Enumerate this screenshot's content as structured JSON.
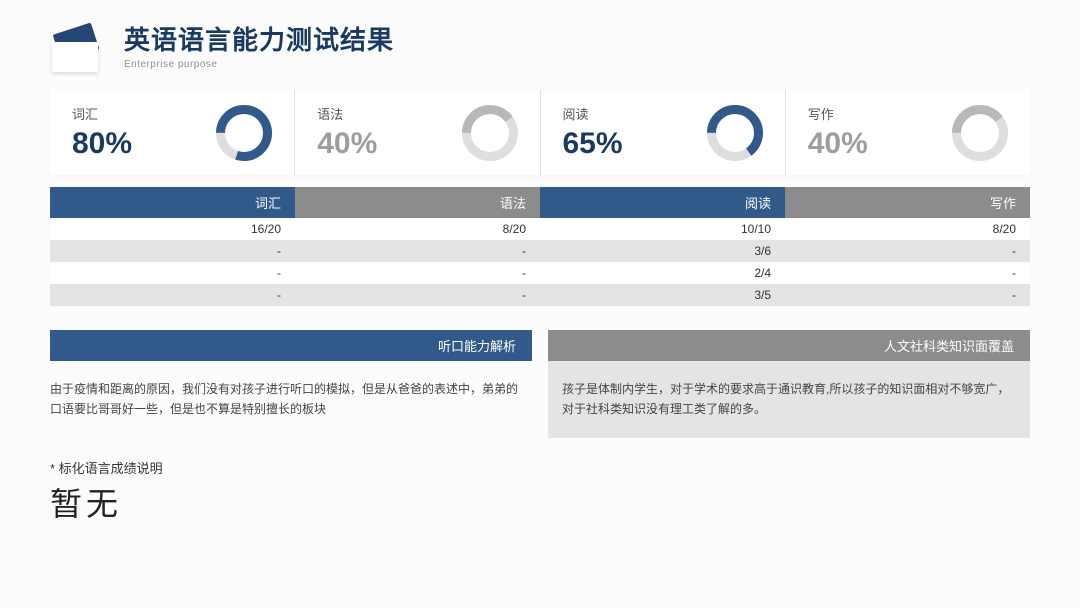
{
  "header": {
    "title": "英语语言能力测试结果",
    "subtitle": "Enterprise purpose"
  },
  "colors": {
    "primary": "#315a8b",
    "primary_dark": "#264776",
    "grey_header": "#8c8c8c",
    "grey_track": "#dedede",
    "grey_fill": "#b8b8b8",
    "row_alt": "#e4e4e4",
    "text_dark": "#1a3a63"
  },
  "donuts": [
    {
      "label": "词汇",
      "percent": 80,
      "display": "80%",
      "color": "#315a8b",
      "emphasis": true
    },
    {
      "label": "语法",
      "percent": 40,
      "display": "40%",
      "color": "#b8b8b8",
      "emphasis": false
    },
    {
      "label": "阅读",
      "percent": 65,
      "display": "65%",
      "color": "#315a8b",
      "emphasis": true
    },
    {
      "label": "写作",
      "percent": 40,
      "display": "40%",
      "color": "#b8b8b8",
      "emphasis": false
    }
  ],
  "donut_style": {
    "outer_radius": 28,
    "thickness": 9,
    "track_color": "#dedede"
  },
  "table": {
    "headers": [
      {
        "label": "词汇",
        "bg": "#315a8b"
      },
      {
        "label": "语法",
        "bg": "#8c8c8c"
      },
      {
        "label": "阅读",
        "bg": "#315a8b"
      },
      {
        "label": "写作",
        "bg": "#8c8c8c"
      }
    ],
    "rows": [
      {
        "alt": false,
        "cells": [
          "16/20",
          "8/20",
          "10/10",
          "8/20"
        ]
      },
      {
        "alt": true,
        "cells": [
          "-",
          "-",
          "3/6",
          "-"
        ]
      },
      {
        "alt": false,
        "cells": [
          "-",
          "-",
          "2/4",
          "-"
        ]
      },
      {
        "alt": true,
        "cells": [
          "-",
          "-",
          "3/5",
          "-"
        ]
      }
    ]
  },
  "analysis": {
    "left": {
      "header": "听口能力解析",
      "header_bg": "#315a8b",
      "body": "由于疫情和距离的原因，我们没有对孩子进行听口的模拟，但是从爸爸的表述中，弟弟的口语要比哥哥好一些，但是也不算是特别擅长的板块",
      "boxed": false
    },
    "right": {
      "header": "人文社科类知识面覆盖",
      "header_bg": "#8c8c8c",
      "body": "孩子是体制内学生，对于学术的要求高于通识教育,所以孩子的知识面相对不够宽广，对于社科类知识没有理工类了解的多。",
      "boxed": true
    }
  },
  "footer": {
    "label": "* 标化语言成绩说明",
    "value": "暂无"
  }
}
